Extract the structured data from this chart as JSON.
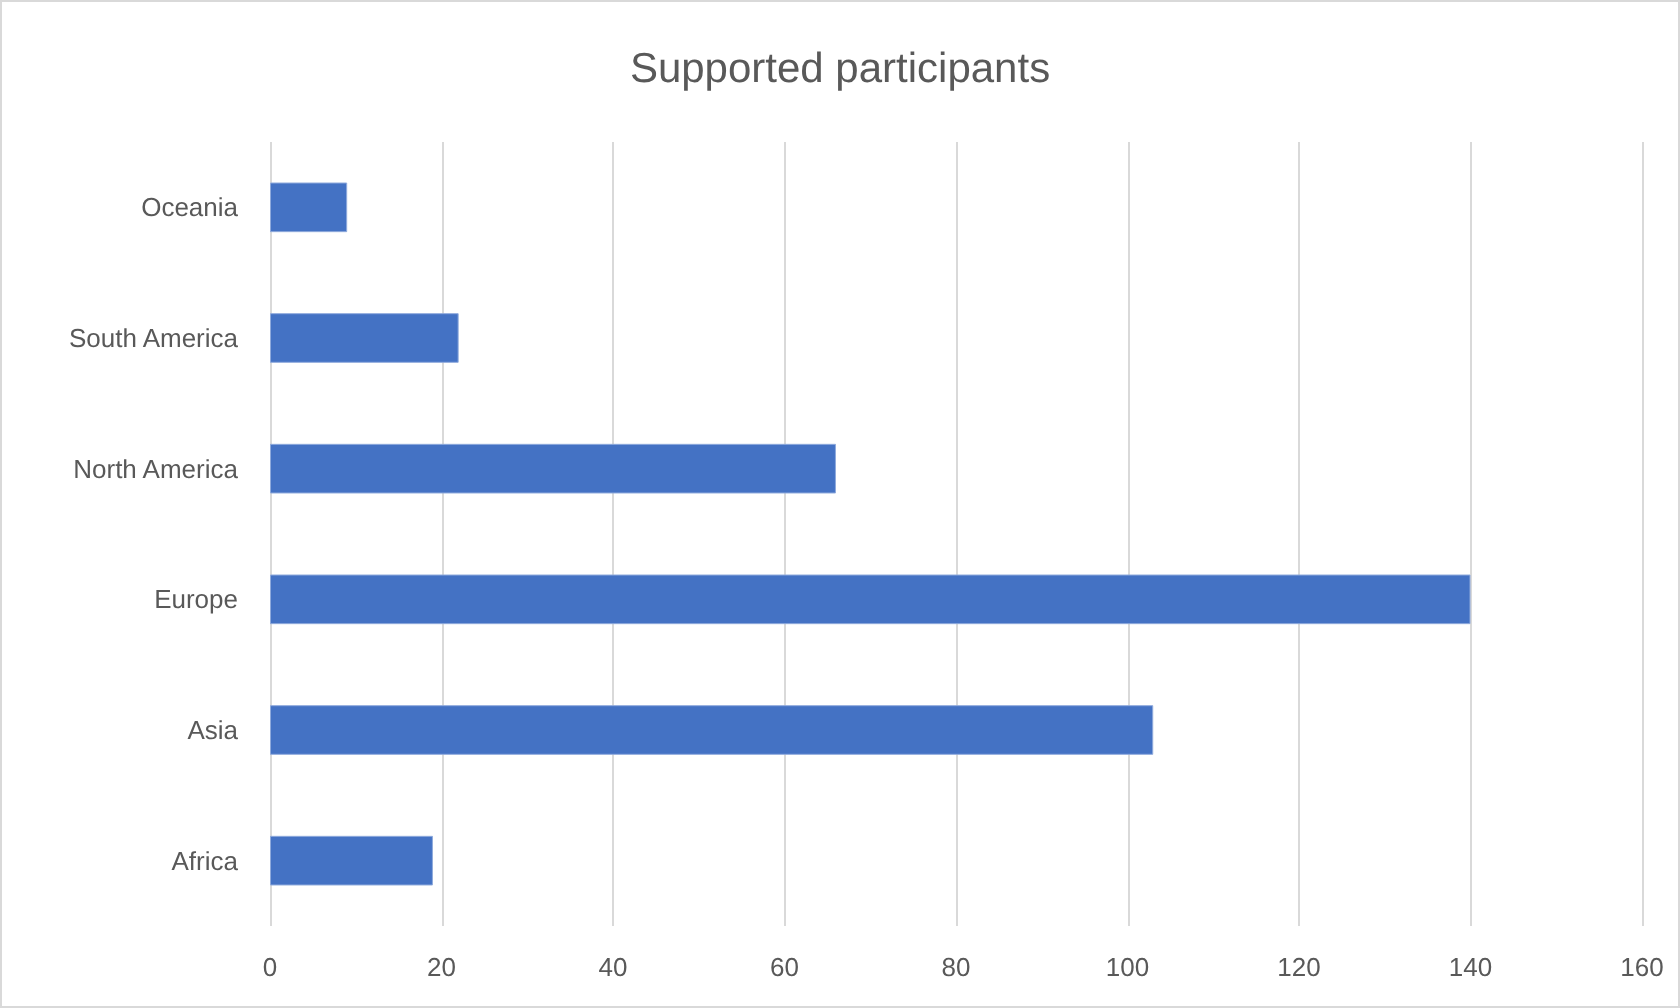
{
  "chart_data": {
    "type": "bar",
    "orientation": "horizontal",
    "title": "Supported participants",
    "categories": [
      "Oceania",
      "South America",
      "North America",
      "Europe",
      "Asia",
      "Africa"
    ],
    "values": [
      9,
      22,
      66,
      140,
      103,
      19
    ],
    "color": "#4472c4",
    "xlim": [
      0,
      160
    ],
    "xticks": [
      0,
      20,
      40,
      60,
      80,
      100,
      120,
      140,
      160
    ],
    "grid": "x"
  }
}
